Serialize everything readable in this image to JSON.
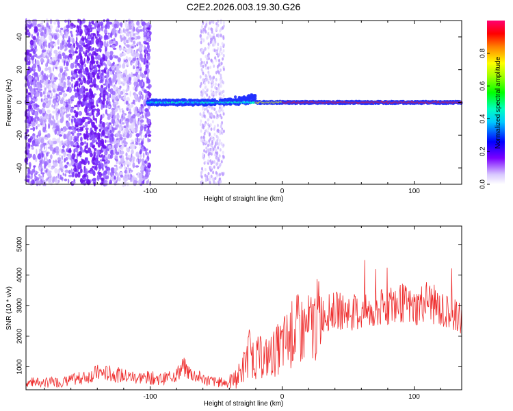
{
  "title": "C2E2.2026.003.19.30.G26",
  "colors": {
    "snr_line": "#ee2a2a",
    "axis": "#000000",
    "background": "#ffffff"
  },
  "chart_data": [
    {
      "type": "heatmap",
      "xlabel": "Height of straight line (km)",
      "ylabel": "Frequency (Hz)",
      "xlim": [
        -194,
        136
      ],
      "ylim": [
        -50,
        50
      ],
      "x_ticks": [
        "-100",
        "0",
        "100"
      ],
      "y_ticks": [
        "40",
        "20",
        "0",
        "-20",
        "-40"
      ],
      "colorbar": {
        "label": "Normalized spectral amplitude",
        "range": [
          0,
          1
        ],
        "ticks": [
          "0.0",
          "0.2",
          "0.4",
          "0.6",
          "0.8"
        ]
      }
    },
    {
      "type": "line",
      "xlabel": "Height of straight line (km)",
      "ylabel": "SNR (10 * v/v)",
      "xlim": [
        -194,
        136
      ],
      "ylim": [
        250,
        5600
      ],
      "x_ticks": [
        "-100",
        "0",
        "100"
      ],
      "y_ticks": [
        "5000",
        "4000",
        "3000",
        "2000",
        "1000"
      ],
      "series": [
        {
          "name": "SNR",
          "x": [
            -194,
            -180,
            -165,
            -150,
            -140,
            -130,
            -120,
            -110,
            -100,
            -90,
            -80,
            -75,
            -70,
            -60,
            -50,
            -40,
            -35,
            -30,
            -25,
            -20,
            -10,
            0,
            10,
            20,
            30,
            40,
            50,
            60,
            70,
            80,
            90,
            100,
            110,
            120,
            136
          ],
          "values": [
            500,
            480,
            520,
            650,
            800,
            780,
            700,
            650,
            640,
            600,
            750,
            1000,
            800,
            600,
            500,
            480,
            620,
            900,
            1500,
            1300,
            1300,
            1700,
            2200,
            2200,
            2700,
            2850,
            2800,
            2750,
            2800,
            3000,
            3100,
            2900,
            3200,
            2850,
            2600
          ]
        }
      ]
    }
  ]
}
